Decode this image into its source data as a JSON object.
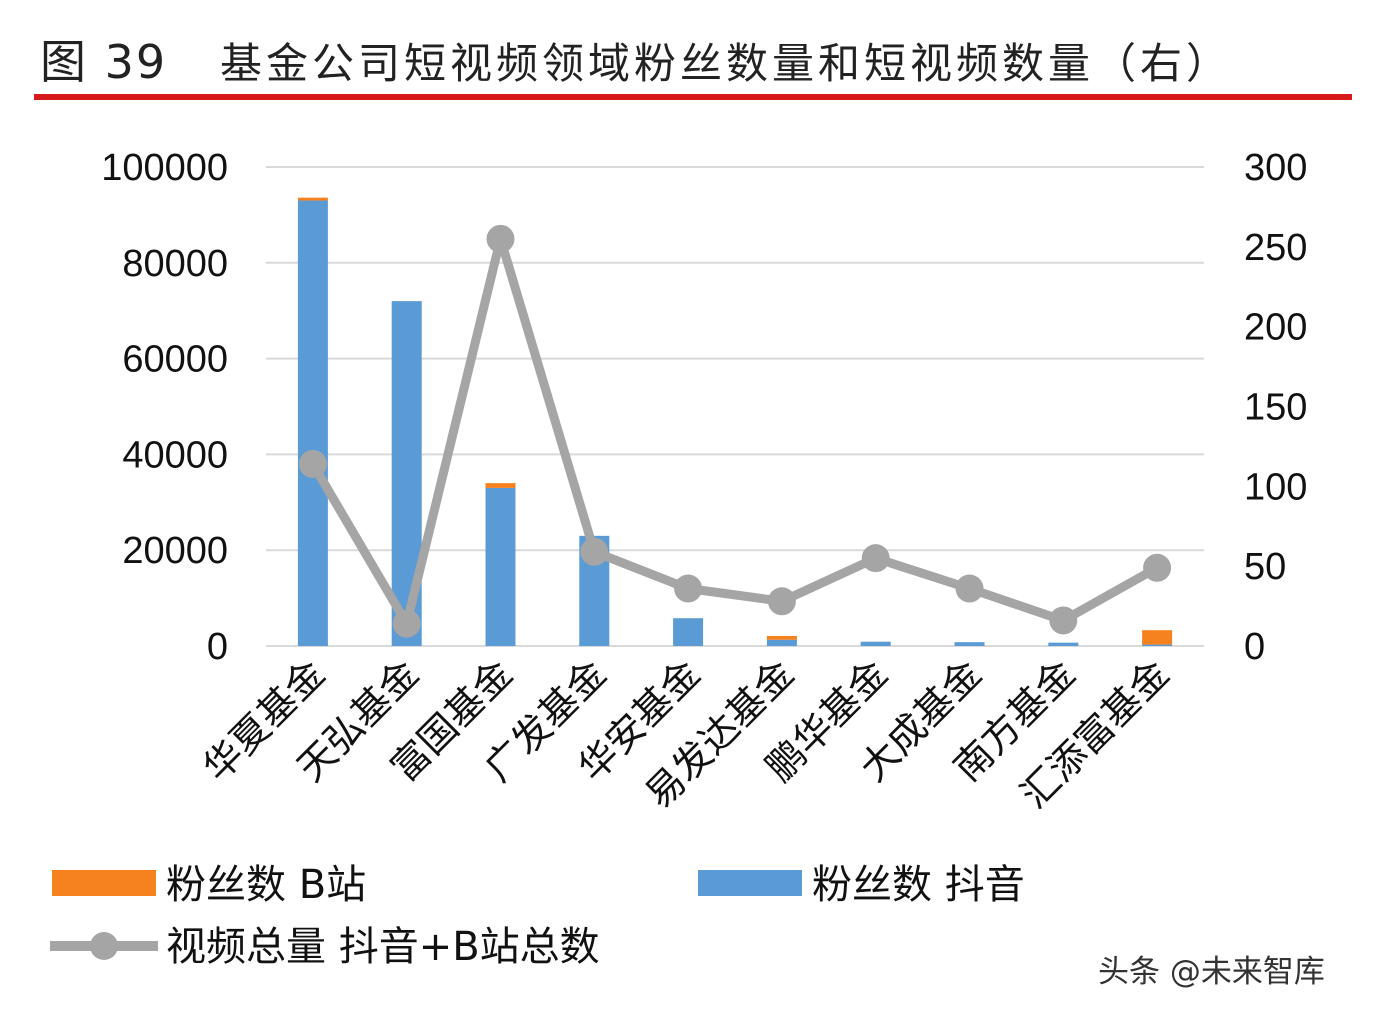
{
  "header": {
    "figure_label": "图 39",
    "title": "基金公司短视频领域粉丝数量和短视频数量（右）"
  },
  "watermark": "头条 @未来智库",
  "colors": {
    "bilibili": "#f5821f",
    "douyin": "#5b9bd5",
    "video": "#a5a5a5",
    "grid": "#d9d9d9",
    "rule": "#d7191c"
  },
  "chart_data": {
    "type": "bar",
    "stacked": true,
    "categories": [
      "华夏基金",
      "天弘基金",
      "富国基金",
      "广发基金",
      "华安基金",
      "易发达基金",
      "鹏华基金",
      "大成基金",
      "南方基金",
      "汇添富基金"
    ],
    "series": [
      {
        "name": "粉丝数 抖音",
        "axis": "left",
        "kind": "bar",
        "values": [
          93000,
          72000,
          33000,
          23000,
          5800,
          1300,
          900,
          800,
          700,
          300
        ]
      },
      {
        "name": "粉丝数 B站",
        "axis": "left",
        "kind": "bar",
        "values": [
          600,
          0,
          1000,
          0,
          0,
          800,
          0,
          0,
          0,
          3000
        ]
      },
      {
        "name": "视频总量 抖音+B站总数",
        "axis": "right",
        "kind": "line",
        "values": [
          114,
          14,
          255,
          59,
          36,
          28,
          55,
          36,
          16,
          49
        ]
      }
    ],
    "left_axis": {
      "min": 0,
      "max": 100000,
      "ticks": [
        "0",
        "20000",
        "40000",
        "60000",
        "80000",
        "100000"
      ]
    },
    "right_axis": {
      "min": 0,
      "max": 300,
      "ticks": [
        "0",
        "50",
        "100",
        "150",
        "200",
        "250",
        "300"
      ]
    },
    "grid": true,
    "legend_position": "bottom"
  }
}
